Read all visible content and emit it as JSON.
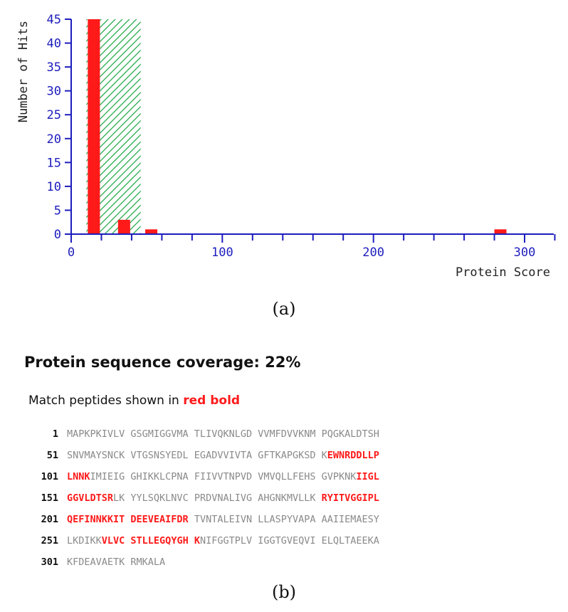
{
  "chart_data": {
    "type": "bar",
    "ylabel": "Number of Hits",
    "xlabel": "Protein Score",
    "xlim": [
      0,
      325
    ],
    "ylim": [
      0,
      45
    ],
    "x_ticks": [
      0,
      100,
      200,
      300
    ],
    "y_ticks": [
      0,
      5,
      10,
      15,
      20,
      25,
      30,
      35,
      40,
      45
    ],
    "significance_band": {
      "from": 10,
      "to": 46,
      "pattern": "green diagonal hatch"
    },
    "bars": [
      {
        "x": 15,
        "value": 45
      },
      {
        "x": 35,
        "value": 3
      },
      {
        "x": 53,
        "value": 1
      },
      {
        "x": 284,
        "value": 1
      }
    ],
    "colors": {
      "axis": "#1d1dbd",
      "bar": "#ff1a1a",
      "hatch": "#1fa846"
    }
  },
  "captions": {
    "a": "(a)",
    "b": "(b)"
  },
  "coverage": {
    "title": "Protein sequence coverage: 22%",
    "note_prefix": "Match peptides shown in ",
    "note_highlight": "red bold",
    "lines": [
      {
        "num": "1",
        "segments": [
          {
            "text": "MAPKPKIVLV GSGMIGGVMA TLIVQKNLGD VVMFDVVKNM PQGKALDTSH",
            "hit": false
          }
        ]
      },
      {
        "num": "51",
        "segments": [
          {
            "text": "SNVMAYSNCK VTGSNSYEDL EGADVVIVTA GFTKAPGKSD K",
            "hit": false
          },
          {
            "text": "EWNRDDLLP",
            "hit": true
          }
        ]
      },
      {
        "num": "101",
        "segments": [
          {
            "text": "LNNK",
            "hit": true
          },
          {
            "text": "IMIEIG GHIKKLCPNA FIIVVTNPVD VMVQLLFEHS GVPKNK",
            "hit": false
          },
          {
            "text": "IIGL",
            "hit": true
          }
        ]
      },
      {
        "num": "151",
        "segments": [
          {
            "text": "GGVLDTSR",
            "hit": true
          },
          {
            "text": "LK YYLSQKLNVC PRDVNALIVG AHGNKMVLLK ",
            "hit": false
          },
          {
            "text": "RYITVGGIPL",
            "hit": true
          }
        ]
      },
      {
        "num": "201",
        "segments": [
          {
            "text": "QEFINNKKIT DEEVEAIFDR",
            "hit": true
          },
          {
            "text": " TVNTALEIVN LLASPYVAPA AAIIEMAESY",
            "hit": false
          }
        ]
      },
      {
        "num": "251",
        "segments": [
          {
            "text": "LKDIKK",
            "hit": false
          },
          {
            "text": "VLVC STLLEGQYGH K",
            "hit": true
          },
          {
            "text": "NIFGGTPLV IGGTGVEQVI ELQLTAEEKA",
            "hit": false
          }
        ]
      },
      {
        "num": "301",
        "segments": [
          {
            "text": "KFDEAVAETK RMKALA",
            "hit": false
          }
        ]
      }
    ]
  }
}
